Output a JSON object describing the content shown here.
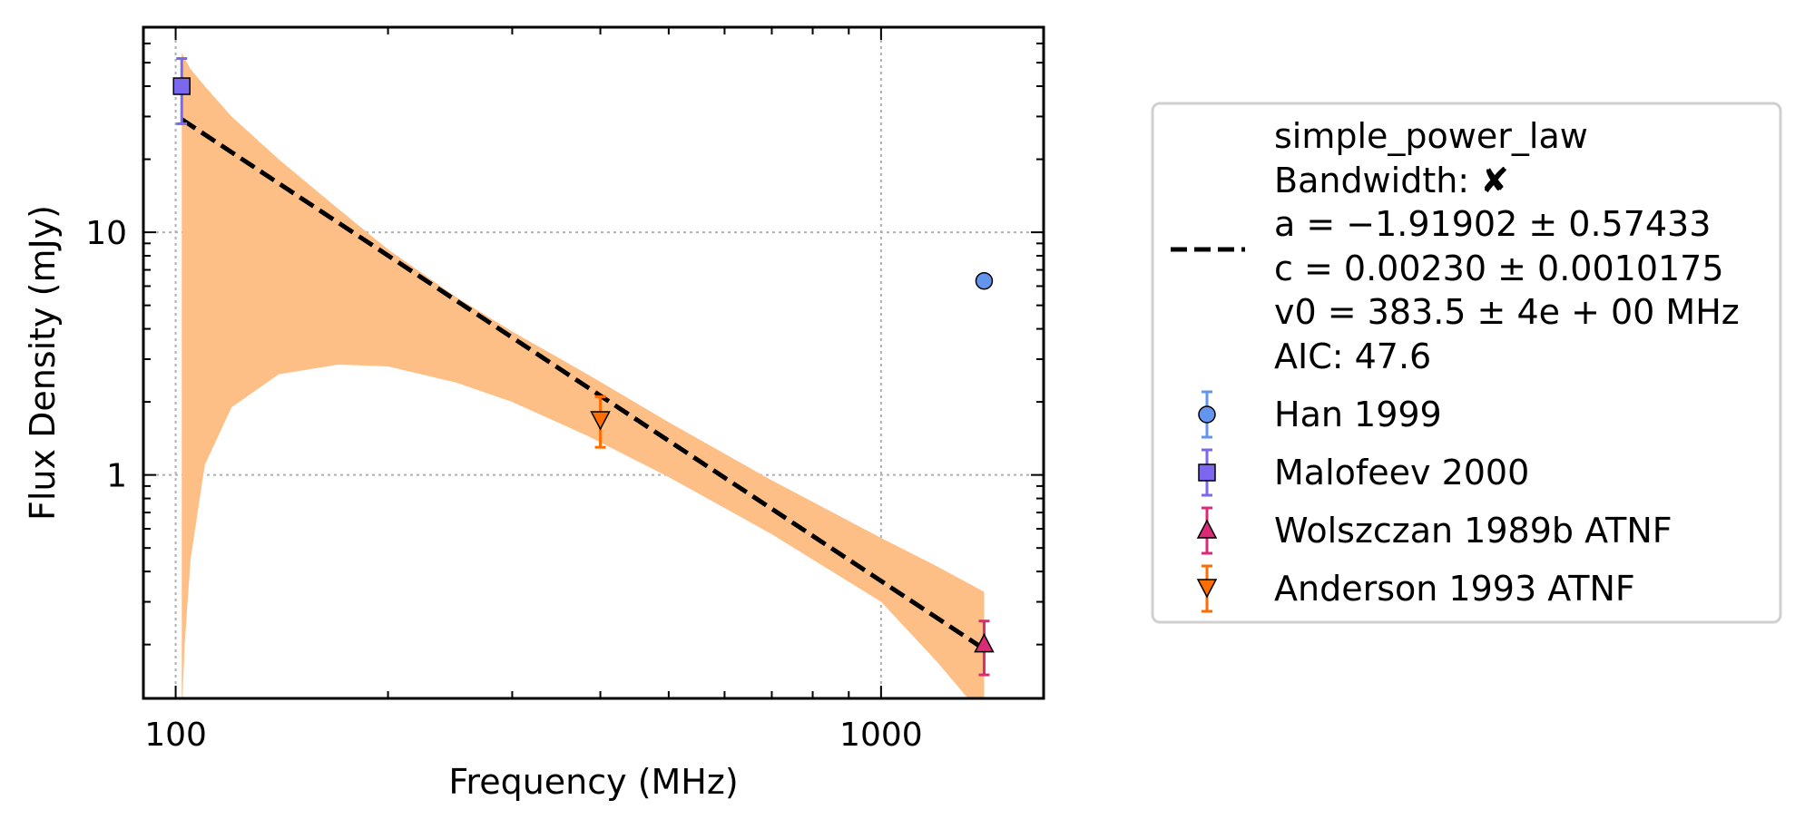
{
  "chart_data": {
    "type": "scatter",
    "xlabel": "Frequency (MHz)",
    "ylabel": "Flux Density (mJy)",
    "x_scale": "log",
    "y_scale": "log",
    "xlim": [
      90,
      1700
    ],
    "ylim": [
      0.12,
      70
    ],
    "grid": true,
    "x_ticks": [
      {
        "value": 100,
        "label": "100"
      },
      {
        "value": 1000,
        "label": "1000"
      }
    ],
    "y_ticks": [
      {
        "value": 1,
        "label": "1"
      },
      {
        "value": 10,
        "label": "10"
      }
    ],
    "legend_position": "outside-right",
    "fit": {
      "name": "simple_power_law",
      "legend_lines": [
        "simple_power_law",
        "Bandwidth: ✘",
        "a = −1.91902 ± 0.57433",
        "c = 0.00230 ± 0.0010175",
        "v0 = 383.5 ± 4e + 00 MHz",
        "AIC: 47.6"
      ],
      "a": -1.91902,
      "a_err": 0.57433,
      "c": 0.0023,
      "c_err": 0.0010175,
      "v0": 383.5,
      "aic": 47.6,
      "x_range": [
        102,
        1400
      ],
      "line_color": "#000000",
      "band_color": "#fdbf86",
      "band": {
        "x": [
          102,
          103,
          105,
          110,
          120,
          140,
          170,
          200,
          250,
          300,
          383.5,
          500,
          700,
          1000,
          1200,
          1400
        ],
        "lower": [
          0.1,
          0.2,
          0.45,
          1.1,
          1.9,
          2.6,
          2.85,
          2.8,
          2.4,
          2.0,
          1.45,
          0.98,
          0.57,
          0.3,
          0.17,
          0.1
        ],
        "upper": [
          55,
          52,
          47,
          40,
          30,
          20,
          12.5,
          8.5,
          5.4,
          3.9,
          2.6,
          1.65,
          0.95,
          0.55,
          0.42,
          0.33
        ]
      }
    },
    "series": [
      {
        "name": "Han 1999",
        "marker": "circle",
        "color": "#6495ed",
        "points": [
          {
            "x": 1400,
            "y": 6.3,
            "yerr": 0
          }
        ]
      },
      {
        "name": "Malofeev 2000",
        "marker": "square",
        "color": "#7b68ee",
        "points": [
          {
            "x": 102,
            "y": 40,
            "yerr": 12
          }
        ]
      },
      {
        "name": "Wolszczan 1989b ATNF",
        "marker": "triangle-up",
        "color": "#db2b76",
        "points": [
          {
            "x": 1400,
            "y": 0.2,
            "yerr": 0.05
          }
        ]
      },
      {
        "name": "Anderson 1993 ATNF",
        "marker": "triangle-down",
        "color": "#ff6d00",
        "points": [
          {
            "x": 400,
            "y": 1.7,
            "yerr": 0.4
          }
        ]
      }
    ]
  }
}
